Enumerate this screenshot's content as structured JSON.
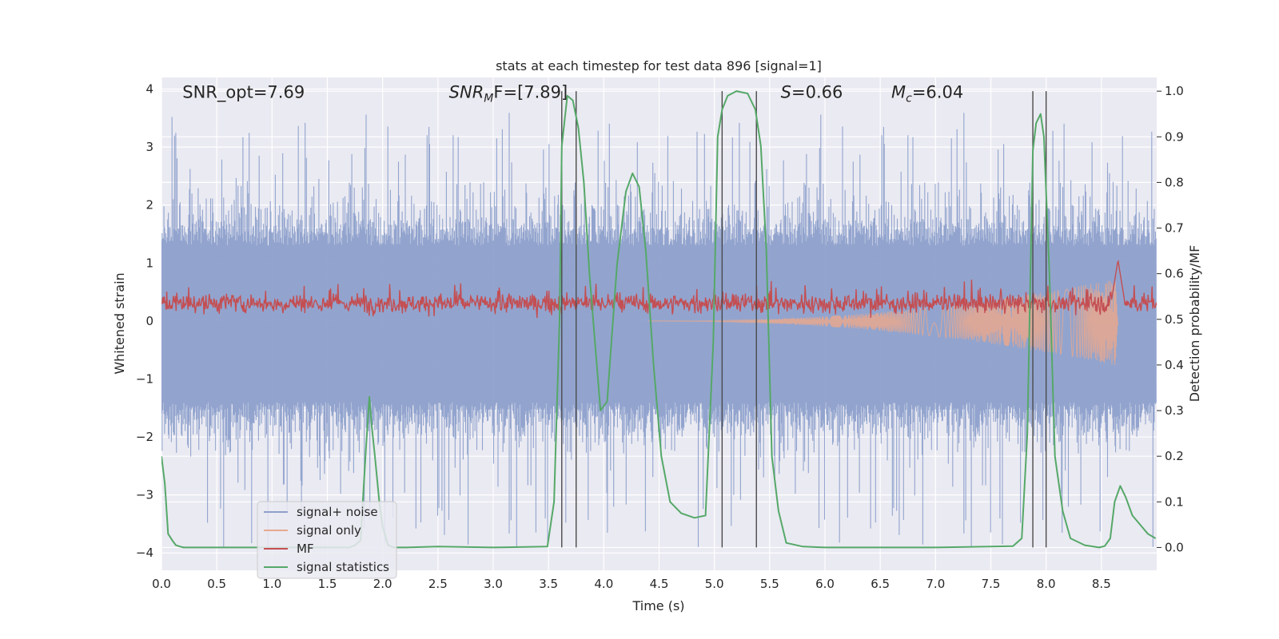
{
  "chart_data": {
    "type": "line",
    "title": "stats at each timestep for test data 896 [signal=1]",
    "xlabel": "Time (s)",
    "ylabel_left": "Whitened strain",
    "ylabel_right": "Detection probability/MF",
    "xlim": [
      0,
      9.0
    ],
    "ylim_left": [
      -4.3,
      4.2
    ],
    "ylim_right": [
      -0.05,
      1.03
    ],
    "x_ticks": [
      0.0,
      0.5,
      1.0,
      1.5,
      2.0,
      2.5,
      3.0,
      3.5,
      4.0,
      4.5,
      5.0,
      5.5,
      6.0,
      6.5,
      7.0,
      7.5,
      8.0,
      8.5
    ],
    "x_tick_labels": [
      "0.0",
      "0.5",
      "1.0",
      "1.5",
      "2.0",
      "2.5",
      "3.0",
      "3.5",
      "4.0",
      "4.5",
      "5.0",
      "5.5",
      "6.0",
      "6.5",
      "7.0",
      "7.5",
      "8.0",
      "8.5"
    ],
    "y_left_ticks": [
      -4,
      -3,
      -2,
      -1,
      0,
      1,
      2,
      3,
      4
    ],
    "y_left_tick_labels": [
      "−4",
      "−3",
      "−2",
      "−1",
      "0",
      "1",
      "2",
      "3",
      "4"
    ],
    "y_right_ticks": [
      0.0,
      0.1,
      0.2,
      0.3,
      0.4,
      0.5,
      0.6,
      0.7,
      0.8,
      0.9,
      1.0
    ],
    "y_right_tick_labels": [
      "0.0",
      "0.1",
      "0.2",
      "0.3",
      "0.4",
      "0.5",
      "0.6",
      "0.7",
      "0.8",
      "0.9",
      "1.0"
    ],
    "grid": true,
    "legend_placement": "lower-left",
    "annotations": [
      {
        "id": "snr-opt",
        "text": "SNR_opt=7.69",
        "x": 0.19,
        "y": 3.85
      },
      {
        "id": "snr-mf",
        "text": "SNR",
        "sub": "M",
        "rest": "F=[7.89]",
        "italic": true,
        "x": 2.6,
        "y": 3.85
      },
      {
        "id": "s",
        "text": "S",
        "rest": "=0.66",
        "italic": true,
        "x": 5.6,
        "y": 3.85
      },
      {
        "id": "mc",
        "text": "M",
        "sub": "c",
        "rest": "=6.04",
        "italic": true,
        "x": 6.6,
        "y": 3.85
      }
    ],
    "series": [
      {
        "name": "signal+ noise",
        "color": "#8da0cb",
        "axis": "left",
        "envelope": {
          "upper_typical": 1.3,
          "upper_peak": 3.6,
          "lower_typical": -1.4,
          "lower_peak": -4.0
        }
      },
      {
        "name": "signal only",
        "color": "#e8a88e",
        "axis": "left",
        "chirp": {
          "start": 4.4,
          "end": 8.65,
          "peak_amplitude": 0.75
        }
      },
      {
        "name": "MF",
        "color": "#c44e52",
        "axis": "right",
        "baseline": 0.535,
        "noise": 0.025,
        "spike": {
          "x": 8.65,
          "y": 0.63
        }
      },
      {
        "name": "signal statistics",
        "color": "#55a868",
        "axis": "right",
        "x": [
          0.0,
          0.03,
          0.06,
          0.1,
          0.13,
          0.17,
          0.2,
          0.3,
          0.5,
          1.0,
          1.5,
          1.7,
          1.75,
          1.8,
          1.85,
          1.88,
          1.9,
          1.93,
          1.97,
          2.0,
          2.05,
          2.1,
          2.2,
          2.5,
          3.0,
          3.49,
          3.55,
          3.6,
          3.62,
          3.67,
          3.72,
          3.77,
          3.82,
          3.87,
          3.92,
          3.97,
          4.03,
          4.12,
          4.2,
          4.26,
          4.32,
          4.38,
          4.45,
          4.52,
          4.6,
          4.7,
          4.82,
          4.92,
          4.99,
          5.03,
          5.07,
          5.12,
          5.2,
          5.3,
          5.37,
          5.42,
          5.47,
          5.52,
          5.58,
          5.65,
          5.8,
          6.0,
          6.5,
          7.0,
          7.5,
          7.7,
          7.78,
          7.83,
          7.88,
          7.91,
          7.95,
          7.98,
          8.03,
          8.08,
          8.15,
          8.22,
          8.35,
          8.48,
          8.53,
          8.58,
          8.62,
          8.67,
          8.72,
          8.78,
          8.85,
          8.92,
          8.99
        ],
        "y": [
          0.2,
          0.14,
          0.03,
          0.015,
          0.005,
          0.002,
          0.0,
          0.0,
          0.0,
          0.0,
          0.0,
          0.0,
          0.005,
          0.015,
          0.22,
          0.33,
          0.27,
          0.2,
          0.1,
          0.045,
          0.005,
          0.0,
          0.0,
          0.002,
          0.0,
          0.002,
          0.1,
          0.5,
          0.88,
          0.99,
          0.98,
          0.92,
          0.8,
          0.6,
          0.45,
          0.3,
          0.32,
          0.62,
          0.78,
          0.82,
          0.79,
          0.65,
          0.4,
          0.2,
          0.1,
          0.075,
          0.065,
          0.07,
          0.45,
          0.9,
          0.96,
          0.99,
          1.0,
          0.995,
          0.96,
          0.88,
          0.65,
          0.2,
          0.08,
          0.01,
          0.002,
          0.0,
          0.0,
          0.0,
          0.002,
          0.003,
          0.02,
          0.25,
          0.87,
          0.93,
          0.95,
          0.9,
          0.6,
          0.2,
          0.08,
          0.02,
          0.005,
          0.0,
          0.003,
          0.02,
          0.1,
          0.135,
          0.11,
          0.07,
          0.05,
          0.03,
          0.02
        ]
      }
    ],
    "vertical_lines": [
      3.62,
      3.75,
      5.07,
      5.38,
      7.88,
      8.0
    ]
  }
}
